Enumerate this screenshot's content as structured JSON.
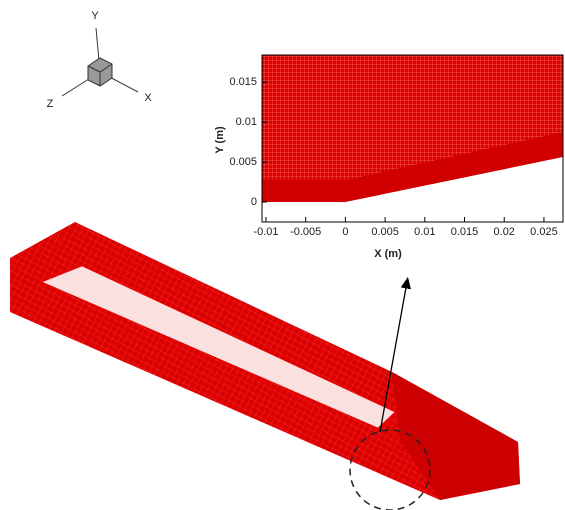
{
  "triad": {
    "y_label": "Y",
    "z_label": "Z",
    "x_label": "X"
  },
  "inset": {
    "xlabel": "X (m)",
    "ylabel": "Y (m)",
    "xlim": [
      -0.0105,
      0.0274
    ],
    "ylim": [
      -0.0025,
      0.0184
    ],
    "xticks": [
      -0.01,
      -0.005,
      0,
      0.005,
      0.01,
      0.015,
      0.02,
      0.025
    ],
    "yticks": [
      0,
      0.005,
      0.01,
      0.015
    ]
  }
}
